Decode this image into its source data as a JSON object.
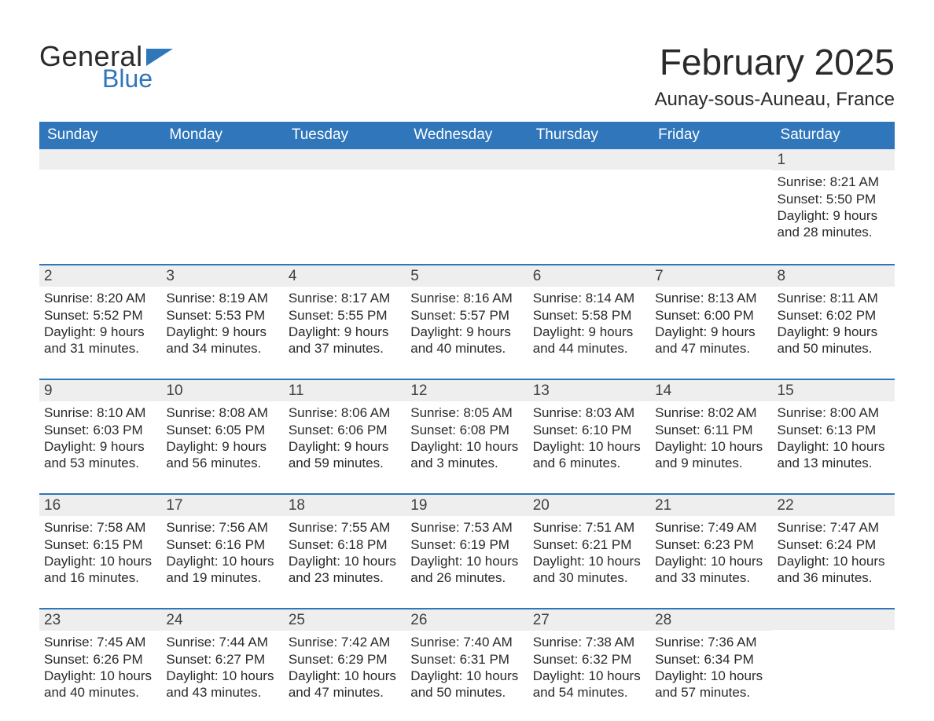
{
  "brand": {
    "word1": "General",
    "word2": "Blue"
  },
  "title": "February 2025",
  "location": "Aunay-sous-Auneau, France",
  "colors": {
    "header_blue": "#2f76bb",
    "band_gray": "#eeeeee",
    "text": "#2a2a2a",
    "white": "#ffffff"
  },
  "weekdays": [
    "Sunday",
    "Monday",
    "Tuesday",
    "Wednesday",
    "Thursday",
    "Friday",
    "Saturday"
  ],
  "weeks": [
    [
      {
        "n": "",
        "sunrise": "",
        "sunset": "",
        "day_h": "",
        "day_m": ""
      },
      {
        "n": "",
        "sunrise": "",
        "sunset": "",
        "day_h": "",
        "day_m": ""
      },
      {
        "n": "",
        "sunrise": "",
        "sunset": "",
        "day_h": "",
        "day_m": ""
      },
      {
        "n": "",
        "sunrise": "",
        "sunset": "",
        "day_h": "",
        "day_m": ""
      },
      {
        "n": "",
        "sunrise": "",
        "sunset": "",
        "day_h": "",
        "day_m": ""
      },
      {
        "n": "",
        "sunrise": "",
        "sunset": "",
        "day_h": "",
        "day_m": ""
      },
      {
        "n": "1",
        "sunrise": "8:21 AM",
        "sunset": "5:50 PM",
        "day_h": "9",
        "day_m": "28"
      }
    ],
    [
      {
        "n": "2",
        "sunrise": "8:20 AM",
        "sunset": "5:52 PM",
        "day_h": "9",
        "day_m": "31"
      },
      {
        "n": "3",
        "sunrise": "8:19 AM",
        "sunset": "5:53 PM",
        "day_h": "9",
        "day_m": "34"
      },
      {
        "n": "4",
        "sunrise": "8:17 AM",
        "sunset": "5:55 PM",
        "day_h": "9",
        "day_m": "37"
      },
      {
        "n": "5",
        "sunrise": "8:16 AM",
        "sunset": "5:57 PM",
        "day_h": "9",
        "day_m": "40"
      },
      {
        "n": "6",
        "sunrise": "8:14 AM",
        "sunset": "5:58 PM",
        "day_h": "9",
        "day_m": "44"
      },
      {
        "n": "7",
        "sunrise": "8:13 AM",
        "sunset": "6:00 PM",
        "day_h": "9",
        "day_m": "47"
      },
      {
        "n": "8",
        "sunrise": "8:11 AM",
        "sunset": "6:02 PM",
        "day_h": "9",
        "day_m": "50"
      }
    ],
    [
      {
        "n": "9",
        "sunrise": "8:10 AM",
        "sunset": "6:03 PM",
        "day_h": "9",
        "day_m": "53"
      },
      {
        "n": "10",
        "sunrise": "8:08 AM",
        "sunset": "6:05 PM",
        "day_h": "9",
        "day_m": "56"
      },
      {
        "n": "11",
        "sunrise": "8:06 AM",
        "sunset": "6:06 PM",
        "day_h": "9",
        "day_m": "59"
      },
      {
        "n": "12",
        "sunrise": "8:05 AM",
        "sunset": "6:08 PM",
        "day_h": "10",
        "day_m": "3"
      },
      {
        "n": "13",
        "sunrise": "8:03 AM",
        "sunset": "6:10 PM",
        "day_h": "10",
        "day_m": "6"
      },
      {
        "n": "14",
        "sunrise": "8:02 AM",
        "sunset": "6:11 PM",
        "day_h": "10",
        "day_m": "9"
      },
      {
        "n": "15",
        "sunrise": "8:00 AM",
        "sunset": "6:13 PM",
        "day_h": "10",
        "day_m": "13"
      }
    ],
    [
      {
        "n": "16",
        "sunrise": "7:58 AM",
        "sunset": "6:15 PM",
        "day_h": "10",
        "day_m": "16"
      },
      {
        "n": "17",
        "sunrise": "7:56 AM",
        "sunset": "6:16 PM",
        "day_h": "10",
        "day_m": "19"
      },
      {
        "n": "18",
        "sunrise": "7:55 AM",
        "sunset": "6:18 PM",
        "day_h": "10",
        "day_m": "23"
      },
      {
        "n": "19",
        "sunrise": "7:53 AM",
        "sunset": "6:19 PM",
        "day_h": "10",
        "day_m": "26"
      },
      {
        "n": "20",
        "sunrise": "7:51 AM",
        "sunset": "6:21 PM",
        "day_h": "10",
        "day_m": "30"
      },
      {
        "n": "21",
        "sunrise": "7:49 AM",
        "sunset": "6:23 PM",
        "day_h": "10",
        "day_m": "33"
      },
      {
        "n": "22",
        "sunrise": "7:47 AM",
        "sunset": "6:24 PM",
        "day_h": "10",
        "day_m": "36"
      }
    ],
    [
      {
        "n": "23",
        "sunrise": "7:45 AM",
        "sunset": "6:26 PM",
        "day_h": "10",
        "day_m": "40"
      },
      {
        "n": "24",
        "sunrise": "7:44 AM",
        "sunset": "6:27 PM",
        "day_h": "10",
        "day_m": "43"
      },
      {
        "n": "25",
        "sunrise": "7:42 AM",
        "sunset": "6:29 PM",
        "day_h": "10",
        "day_m": "47"
      },
      {
        "n": "26",
        "sunrise": "7:40 AM",
        "sunset": "6:31 PM",
        "day_h": "10",
        "day_m": "50"
      },
      {
        "n": "27",
        "sunrise": "7:38 AM",
        "sunset": "6:32 PM",
        "day_h": "10",
        "day_m": "54"
      },
      {
        "n": "28",
        "sunrise": "7:36 AM",
        "sunset": "6:34 PM",
        "day_h": "10",
        "day_m": "57"
      },
      {
        "n": "",
        "sunrise": "",
        "sunset": "",
        "day_h": "",
        "day_m": ""
      }
    ]
  ],
  "labels": {
    "sunrise": "Sunrise: ",
    "sunset": "Sunset: ",
    "daylight1": "Daylight: ",
    "hours": " hours",
    "and": "and ",
    "minutes": " minutes."
  }
}
